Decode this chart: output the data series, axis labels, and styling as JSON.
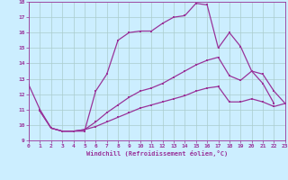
{
  "xlabel": "Windchill (Refroidissement éolien,°C)",
  "bg_color": "#cceeff",
  "line_color": "#993399",
  "grid_color": "#aacccc",
  "xmin": 0,
  "xmax": 23,
  "ymin": 9,
  "ymax": 18,
  "yticks": [
    9,
    10,
    11,
    12,
    13,
    14,
    15,
    16,
    17,
    18
  ],
  "xticks": [
    0,
    1,
    2,
    3,
    4,
    5,
    6,
    7,
    8,
    9,
    10,
    11,
    12,
    13,
    14,
    15,
    16,
    17,
    18,
    19,
    20,
    21,
    22,
    23
  ],
  "line1_x": [
    0,
    1,
    2,
    3,
    4,
    5,
    6,
    7,
    8,
    9,
    10,
    11,
    12,
    13,
    14,
    15,
    16,
    17,
    18,
    19,
    20,
    21,
    22
  ],
  "line1_y": [
    12.6,
    11.0,
    9.8,
    9.6,
    9.6,
    9.6,
    12.2,
    13.3,
    15.5,
    16.0,
    16.1,
    16.1,
    16.6,
    17.0,
    17.1,
    17.9,
    17.8,
    15.0,
    16.0,
    15.1,
    13.5,
    12.7,
    11.4
  ],
  "line2_x": [
    1,
    2,
    3,
    4,
    5,
    6,
    7,
    8,
    9,
    10,
    11,
    12,
    13,
    14,
    15,
    16,
    17,
    18,
    19,
    20,
    21,
    22,
    23
  ],
  "line2_y": [
    10.9,
    9.8,
    9.6,
    9.6,
    9.7,
    10.2,
    10.8,
    11.3,
    11.8,
    12.2,
    12.4,
    12.7,
    13.1,
    13.5,
    13.9,
    14.2,
    14.4,
    13.2,
    12.9,
    13.5,
    13.3,
    12.2,
    11.4
  ],
  "line3_x": [
    1,
    2,
    3,
    4,
    5,
    6,
    7,
    8,
    9,
    10,
    11,
    12,
    13,
    14,
    15,
    16,
    17,
    18,
    19,
    20,
    21,
    22,
    23
  ],
  "line3_y": [
    10.9,
    9.8,
    9.6,
    9.6,
    9.7,
    9.9,
    10.2,
    10.5,
    10.8,
    11.1,
    11.3,
    11.5,
    11.7,
    11.9,
    12.2,
    12.4,
    12.5,
    11.5,
    11.5,
    11.7,
    11.5,
    11.2,
    11.4
  ]
}
